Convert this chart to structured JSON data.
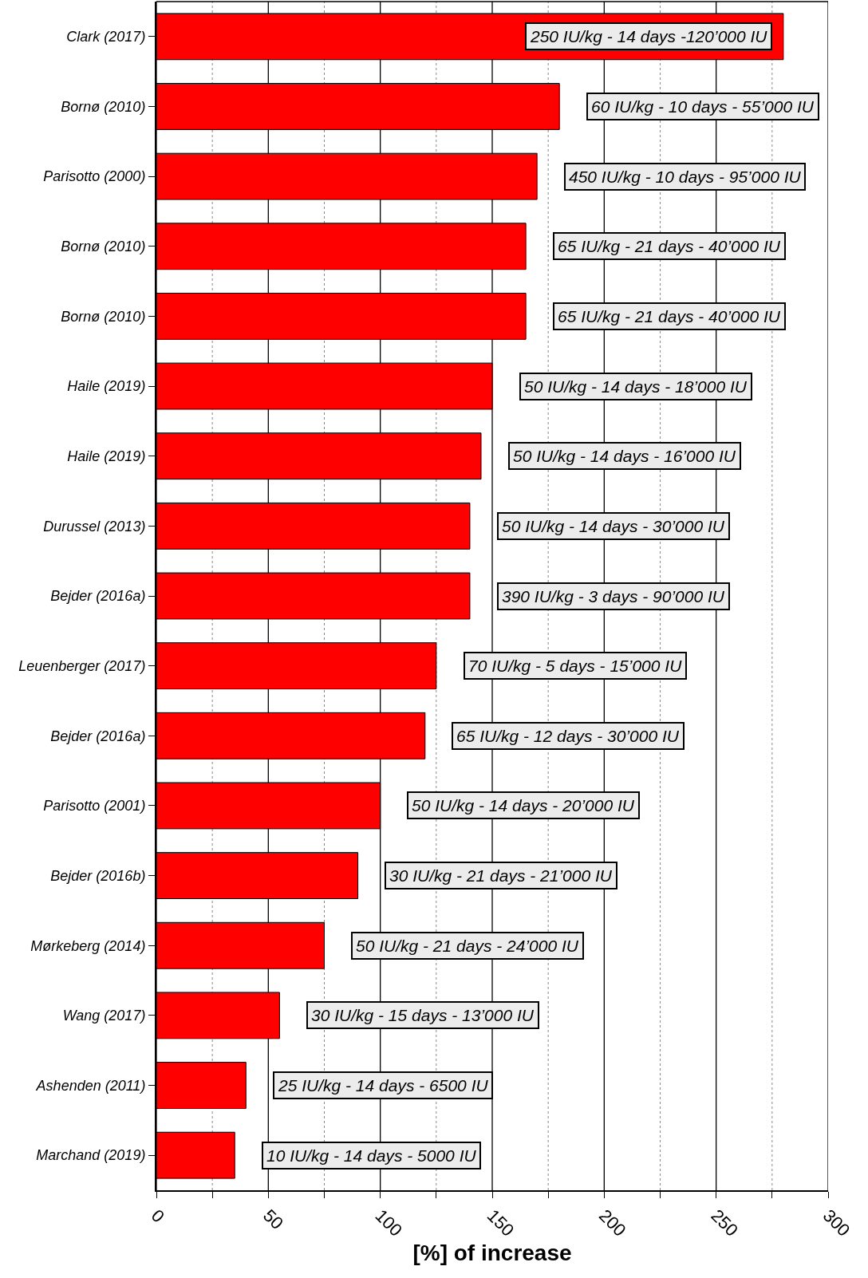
{
  "chart_data": {
    "type": "bar",
    "orientation": "horizontal",
    "xlabel": "[%] of increase",
    "categories": [
      "Clark (2017)",
      "Bornø (2010)",
      "Parisotto (2000)",
      "Bornø (2010)",
      "Bornø (2010)",
      "Haile (2019)",
      "Haile (2019)",
      "Durussel (2013)",
      "Bejder (2016a)",
      "Leuenberger (2017)",
      "Bejder (2016a)",
      "Parisotto (2001)",
      "Bejder (2016b)",
      "Mørkeberg (2014)",
      "Wang (2017)",
      "Ashenden (2011)",
      "Marchand (2019)"
    ],
    "values": [
      280,
      180,
      170,
      165,
      165,
      150,
      145,
      140,
      140,
      125,
      120,
      100,
      90,
      75,
      55,
      40,
      35
    ],
    "color": "#ff0000",
    "xlim": [
      0,
      300
    ],
    "xticks": [
      0,
      {
        "value": 25,
        "label": null
      },
      50,
      {
        "value": 75,
        "label": null
      },
      100,
      {
        "value": 125,
        "label": null
      },
      150,
      {
        "value": 175,
        "label": null
      },
      200,
      {
        "value": 225,
        "label": null
      },
      250,
      {
        "value": 275,
        "label": null
      },
      300
    ],
    "grid": "x",
    "annotations": [
      {
        "text": "250 IU/kg - 14 days -120’000 IU",
        "x": 280
      },
      {
        "text": "60 IU/kg - 10 days - 55’000 IU",
        "x": 180
      },
      {
        "text": "450 IU/kg - 10 days - 95’000 IU",
        "x": 170
      },
      {
        "text": "65 IU/kg - 21 days - 40’000 IU",
        "x": 165
      },
      {
        "text": "65 IU/kg - 21 days - 40’000 IU",
        "x": 165
      },
      {
        "text": "50 IU/kg - 14 days - 18’000 IU",
        "x": 150
      },
      {
        "text": "50 IU/kg - 14 days - 16’000 IU",
        "x": 145
      },
      {
        "text": "50 IU/kg - 14 days - 30’000 IU",
        "x": 140
      },
      {
        "text": "390 IU/kg - 3 days - 90’000 IU",
        "x": 140
      },
      {
        "text": "70 IU/kg - 5 days - 15’000 IU",
        "x": 125
      },
      {
        "text": "65 IU/kg - 12 days - 30’000 IU",
        "x": 120
      },
      {
        "text": "50 IU/kg - 14 days - 20’000 IU",
        "x": 100
      },
      {
        "text": "30 IU/kg - 21 days - 21’000 IU",
        "x": 90
      },
      {
        "text": "50 IU/kg - 21 days - 24’000 IU",
        "x": 75
      },
      {
        "text": "30 IU/kg - 15 days - 13’000 IU",
        "x": 55
      },
      {
        "text": "25 IU/kg - 14 days - 6500 IU",
        "x": 40
      },
      {
        "text": "10 IU/kg - 14 days - 5000 IU",
        "x": 35
      }
    ]
  }
}
